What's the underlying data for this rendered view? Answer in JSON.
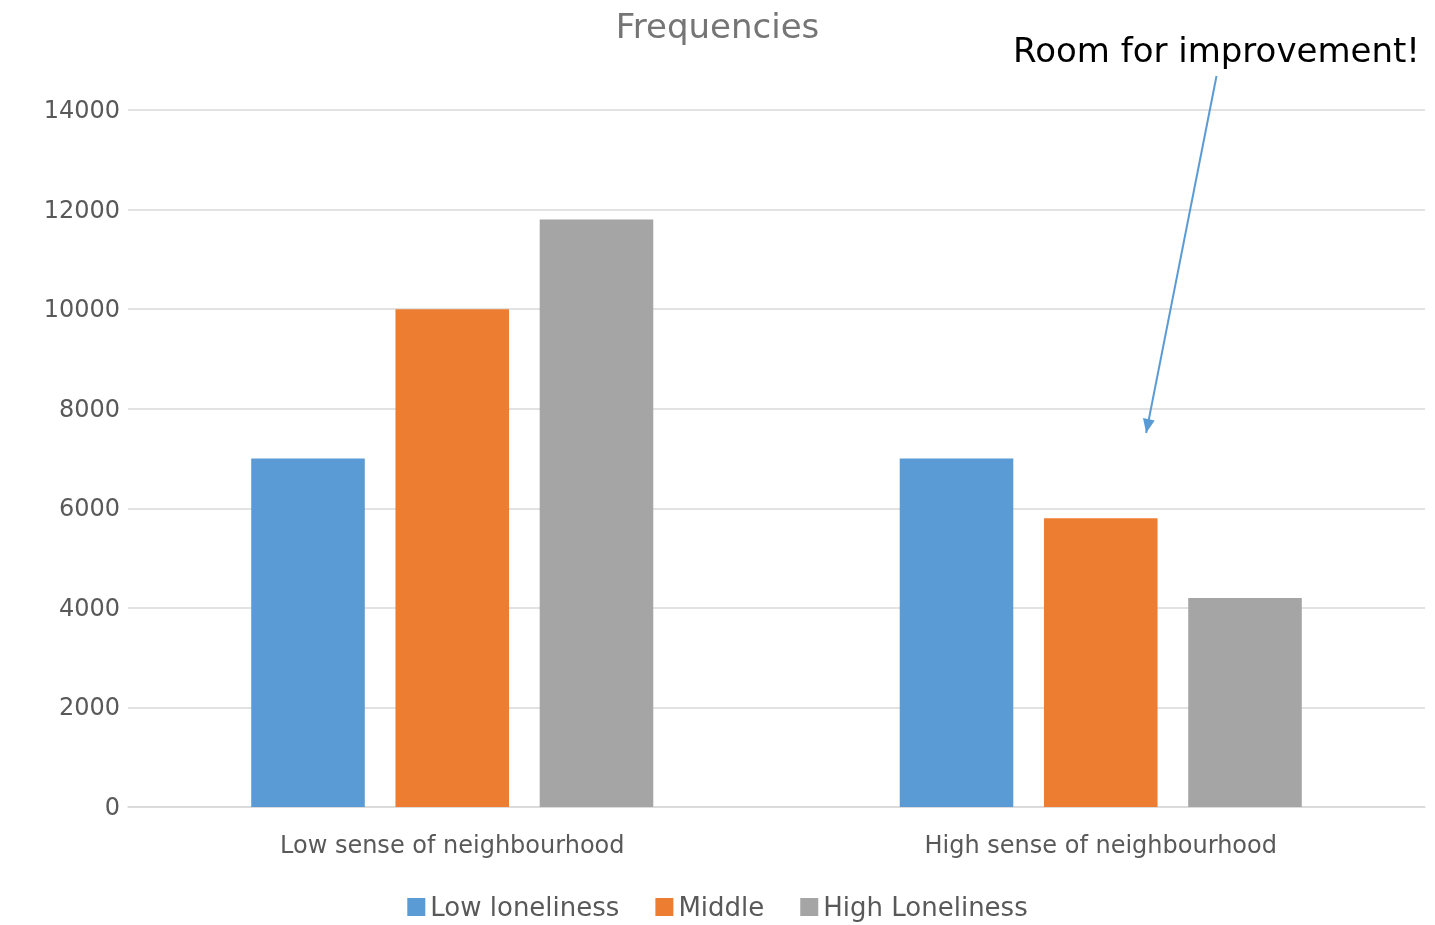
{
  "chart_data": {
    "type": "bar",
    "title": "Frequencies",
    "categories": [
      "Low sense of neighbourhood",
      "High sense of neighbourhood"
    ],
    "series": [
      {
        "name": "Low loneliness",
        "color": "#5b9bd5",
        "values": [
          7000,
          7000
        ]
      },
      {
        "name": "Middle",
        "color": "#ed7d31",
        "values": [
          10000,
          5800
        ]
      },
      {
        "name": "High Loneliness",
        "color": "#a5a5a5",
        "values": [
          11800,
          4200
        ]
      }
    ],
    "ylim": [
      0,
      14000
    ],
    "yticks": [
      0,
      2000,
      4000,
      6000,
      8000,
      10000,
      12000,
      14000
    ],
    "grid": "y",
    "legend": "bottom",
    "annotations": [
      "Room for improvement!"
    ]
  }
}
